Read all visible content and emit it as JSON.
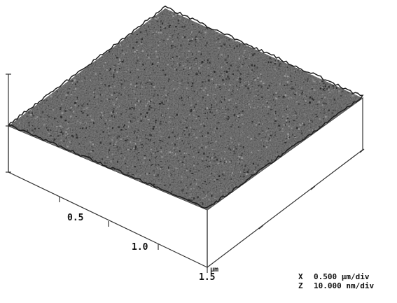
{
  "axis": {
    "tick_labels": [
      "0.5",
      "1.0",
      "1.5"
    ],
    "unit": "µm"
  },
  "scale_info": {
    "x_label": "X",
    "x_value": "0.500 µm/div",
    "z_label": "Z",
    "z_value": "10.000 nm/div"
  },
  "colors": {
    "surface_dark": "#2a2a2a",
    "surface_light": "#9a9a9a",
    "side_face": "#ffffff",
    "line": "#333333"
  }
}
